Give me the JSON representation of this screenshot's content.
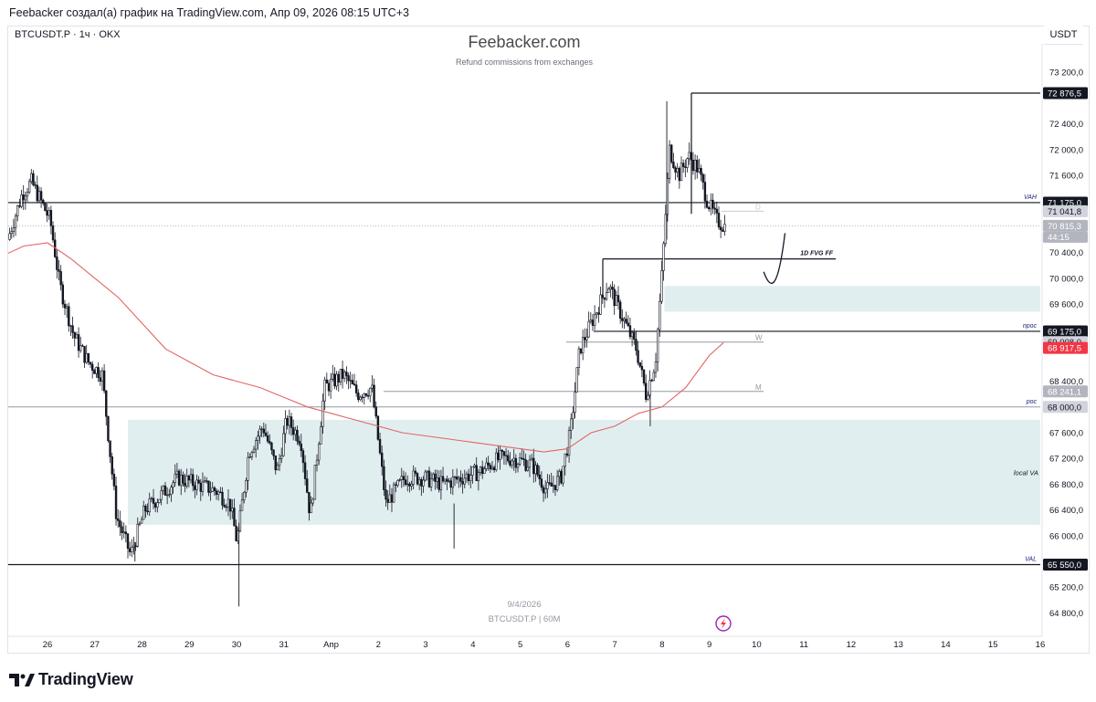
{
  "header": {
    "title": "Feebacker создал(а) график на TradingView.com, Апр 09, 2026 08:15 UTC+3"
  },
  "symbol_label": "BTCUSDT.P · 1ч · OKX",
  "brand": {
    "name": "Feebacker.com",
    "tagline": "Refund commissions from exchanges"
  },
  "currency": "USDT",
  "watermark": {
    "date": "9/4/2026",
    "symbol": "BTCUSDT.P | 60M"
  },
  "footer": {
    "logo_text": "TradingView"
  },
  "colors": {
    "candle": "#131722",
    "ma": "#e06666",
    "zone": "#e1eef0",
    "level_dark": "#131722",
    "level_gray": "#9598a1",
    "price_red": "#f23645"
  },
  "chart_data": {
    "type": "candlestick",
    "ylim": [
      64600,
      73600
    ],
    "y_ticks": [
      {
        "value": 73200,
        "label": "73 200,0"
      },
      {
        "value": 72400,
        "label": "72 400,0"
      },
      {
        "value": 72000,
        "label": "72 000,0"
      },
      {
        "value": 71600,
        "label": "71 600,0"
      },
      {
        "value": 70400,
        "label": "70 400,0"
      },
      {
        "value": 70000,
        "label": "70 000,0"
      },
      {
        "value": 69600,
        "label": "69 600,0"
      },
      {
        "value": 68400,
        "label": "68 400,0"
      },
      {
        "value": 67600,
        "label": "67 600,0"
      },
      {
        "value": 67200,
        "label": "67 200,0"
      },
      {
        "value": 66800,
        "label": "66 800,0"
      },
      {
        "value": 66400,
        "label": "66 400,0"
      },
      {
        "value": 66000,
        "label": "66 000,0"
      },
      {
        "value": 65200,
        "label": "65 200,0"
      },
      {
        "value": 64800,
        "label": "64 800,0"
      }
    ],
    "x_ticks": [
      {
        "day": 26,
        "label": "26"
      },
      {
        "day": 27,
        "label": "27"
      },
      {
        "day": 28,
        "label": "28"
      },
      {
        "day": 29,
        "label": "29"
      },
      {
        "day": 30,
        "label": "30"
      },
      {
        "day": 31,
        "label": "31"
      },
      {
        "day": 32,
        "label": "Апр"
      },
      {
        "day": 33,
        "label": "2"
      },
      {
        "day": 34,
        "label": "3"
      },
      {
        "day": 35,
        "label": "4"
      },
      {
        "day": 36,
        "label": "5"
      },
      {
        "day": 37,
        "label": "6"
      },
      {
        "day": 38,
        "label": "7"
      },
      {
        "day": 39,
        "label": "8"
      },
      {
        "day": 40,
        "label": "9"
      },
      {
        "day": 41,
        "label": "10"
      },
      {
        "day": 42,
        "label": "11"
      },
      {
        "day": 43,
        "label": "12"
      },
      {
        "day": 44,
        "label": "13"
      },
      {
        "day": 45,
        "label": "14"
      },
      {
        "day": 46,
        "label": "15"
      },
      {
        "day": 47,
        "label": "16"
      }
    ],
    "price_series_keypoints": [
      [
        25.2,
        70600
      ],
      [
        25.5,
        71300
      ],
      [
        25.7,
        71500
      ],
      [
        25.9,
        71200
      ],
      [
        26.1,
        70900
      ],
      [
        26.3,
        69900
      ],
      [
        26.6,
        69100
      ],
      [
        26.9,
        68700
      ],
      [
        27.2,
        68500
      ],
      [
        27.5,
        66300
      ],
      [
        27.8,
        65700
      ],
      [
        28.1,
        66400
      ],
      [
        28.4,
        66600
      ],
      [
        28.8,
        66900
      ],
      [
        29.2,
        66800
      ],
      [
        29.6,
        66700
      ],
      [
        29.9,
        66500
      ],
      [
        30.05,
        65900
      ],
      [
        30.3,
        67300
      ],
      [
        30.6,
        67700
      ],
      [
        30.9,
        67000
      ],
      [
        31.1,
        67800
      ],
      [
        31.4,
        67500
      ],
      [
        31.6,
        66300
      ],
      [
        31.9,
        68300
      ],
      [
        32.3,
        68500
      ],
      [
        32.6,
        68200
      ],
      [
        32.9,
        68300
      ],
      [
        33.2,
        66500
      ],
      [
        33.6,
        66900
      ],
      [
        34.0,
        66900
      ],
      [
        34.4,
        66800
      ],
      [
        34.8,
        66900
      ],
      [
        35.2,
        67000
      ],
      [
        35.6,
        67200
      ],
      [
        35.9,
        67200
      ],
      [
        36.3,
        67100
      ],
      [
        36.6,
        66700
      ],
      [
        36.9,
        66900
      ],
      [
        37.1,
        67600
      ],
      [
        37.3,
        68900
      ],
      [
        37.6,
        69400
      ],
      [
        37.9,
        69900
      ],
      [
        38.2,
        69400
      ],
      [
        38.5,
        68900
      ],
      [
        38.7,
        68200
      ],
      [
        38.9,
        68700
      ],
      [
        39.05,
        70200
      ],
      [
        39.2,
        72000
      ],
      [
        39.4,
        71600
      ],
      [
        39.6,
        71900
      ],
      [
        39.8,
        71700
      ],
      [
        40.0,
        71200
      ],
      [
        40.2,
        70900
      ],
      [
        40.35,
        70815
      ]
    ],
    "ma_keypoints": [
      [
        25.0,
        70330
      ],
      [
        25.5,
        70500
      ],
      [
        26.0,
        70550
      ],
      [
        26.5,
        70300
      ],
      [
        27.0,
        70000
      ],
      [
        27.5,
        69700
      ],
      [
        28.0,
        69300
      ],
      [
        28.5,
        68900
      ],
      [
        29.0,
        68700
      ],
      [
        29.5,
        68500
      ],
      [
        30.0,
        68400
      ],
      [
        30.5,
        68300
      ],
      [
        31.0,
        68150
      ],
      [
        31.5,
        68000
      ],
      [
        32.0,
        67900
      ],
      [
        32.5,
        67800
      ],
      [
        33.0,
        67700
      ],
      [
        33.5,
        67600
      ],
      [
        34.0,
        67550
      ],
      [
        34.5,
        67500
      ],
      [
        35.0,
        67450
      ],
      [
        35.5,
        67400
      ],
      [
        36.0,
        67350
      ],
      [
        36.5,
        67300
      ],
      [
        37.0,
        67350
      ],
      [
        37.5,
        67600
      ],
      [
        38.0,
        67700
      ],
      [
        38.5,
        67900
      ],
      [
        39.0,
        68000
      ],
      [
        39.5,
        68300
      ],
      [
        40.0,
        68800
      ],
      [
        40.3,
        69000
      ]
    ],
    "levels": [
      {
        "name": "VAH",
        "value": 71175.0,
        "label": "71 175,0",
        "style": "dark",
        "text": "VAH"
      },
      {
        "name": "level-71041",
        "value": 71041.8,
        "label": "71 041,8",
        "style": "gray-short"
      },
      {
        "name": "current-price",
        "value": 70815.3,
        "label": "70 815,3",
        "countdown": "44:15",
        "style": "current"
      },
      {
        "name": "fvg",
        "value": 70300,
        "text": "1D FVG FF",
        "style": "fvg"
      },
      {
        "name": "npoc",
        "value": 69175.0,
        "label": "69 175,0",
        "style": "dark",
        "text": "npoc"
      },
      {
        "name": "level-69008",
        "value": 69008.0,
        "label": "69 008,0",
        "style": "gray-short",
        "text": "W"
      },
      {
        "name": "ma-price",
        "value": 68917.5,
        "label": "68 917,5",
        "style": "red"
      },
      {
        "name": "level-68241",
        "value": 68241.1,
        "label": "68 241,1",
        "style": "gray-short",
        "text": "M"
      },
      {
        "name": "poc",
        "value": 68000.0,
        "label": "68 000,0",
        "style": "gray",
        "text": "poc"
      },
      {
        "name": "VAL",
        "value": 65550.0,
        "label": "65 550,0",
        "style": "dark",
        "text": "VAL"
      },
      {
        "name": "high",
        "value": 72876.5,
        "label": "72 876,5",
        "style": "dark-high"
      }
    ],
    "marker_D": "D",
    "zones": [
      {
        "name": "upper-zone",
        "from_day": 39.05,
        "to_day": 47.0,
        "top": 69880,
        "bottom": 69480
      },
      {
        "name": "local-va",
        "from_day": 27.7,
        "to_day": 47.0,
        "top": 67800,
        "bottom": 66170,
        "text": "local VA"
      }
    ],
    "projection": [
      [
        41.15,
        70100
      ],
      [
        41.3,
        69800
      ],
      [
        41.45,
        69800
      ],
      [
        41.6,
        70700
      ]
    ]
  }
}
